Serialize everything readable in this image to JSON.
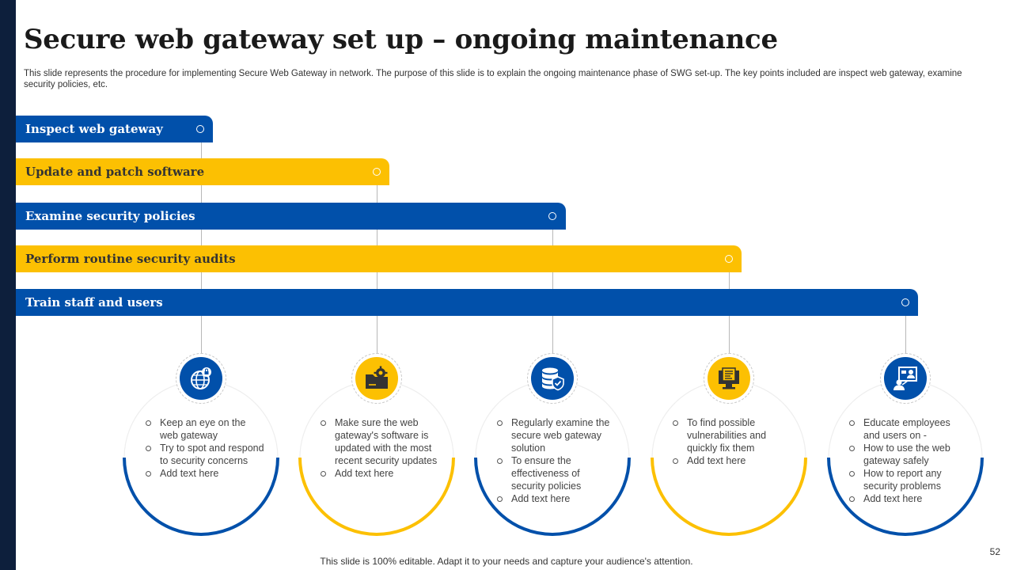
{
  "title": "Secure web gateway set up – ongoing maintenance",
  "subtitle": "This slide represents the procedure for implementing Secure Web Gateway in network. The purpose of this slide is to explain the ongoing maintenance phase of SWG set-up. The key points included are inspect web gateway, examine security policies, etc.",
  "colors": {
    "blue": "#0150aa",
    "yellow": "#fcc002",
    "dark_strip": "#0d1f3c"
  },
  "steps": [
    {
      "label": "Inspect web gateway",
      "color": "blue",
      "icon": "globe-lock-icon",
      "points": [
        "Keep an eye on the web gateway",
        "Try to spot and respond to security concerns",
        "Add text here"
      ]
    },
    {
      "label": "Update and patch software",
      "color": "yellow",
      "icon": "folder-gear-icon",
      "points": [
        "Make sure the web gateway's software is updated with the most recent security updates",
        "Add text here"
      ]
    },
    {
      "label": "Examine security policies",
      "color": "blue",
      "icon": "database-shield-icon",
      "points": [
        "Regularly examine the secure web gateway solution",
        "To ensure the effectiveness of security policies",
        "Add text here"
      ]
    },
    {
      "label": "Perform routine security audits",
      "color": "yellow",
      "icon": "monitor-report-icon",
      "points": [
        "To find possible vulnerabilities and quickly fix them",
        "Add text here"
      ]
    },
    {
      "label": "Train staff and users",
      "color": "blue",
      "icon": "presentation-user-icon",
      "points": [
        "Educate employees and users on -",
        "How to use the web gateway safely",
        "How to report any security problems",
        "Add text here"
      ]
    }
  ],
  "footer": "This slide is 100% editable. Adapt it to your needs and capture your audience's attention.",
  "page_number": "52"
}
